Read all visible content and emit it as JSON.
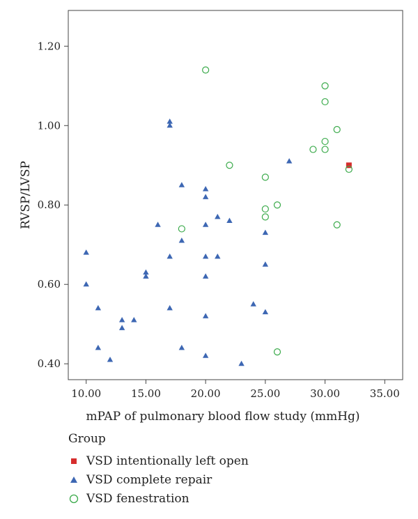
{
  "chart_data": {
    "type": "scatter",
    "xlabel": "mPAP of pulmonary blood flow study (mmHg)",
    "ylabel": "RVSP/LVSP",
    "xlim": [
      8.5,
      36.5
    ],
    "ylim": [
      0.36,
      1.29
    ],
    "xticks": [
      "10.00",
      "15.00",
      "20.00",
      "25.00",
      "30.00",
      "35.00"
    ],
    "yticks": [
      "0.40",
      "0.60",
      "0.80",
      "1.00",
      "1.20"
    ],
    "legend_title": "Group",
    "legend_placement": "bottom",
    "grid": false,
    "series": [
      {
        "name": "VSD intentionally left open",
        "marker": "square",
        "color": "#d62d2d",
        "points": [
          [
            32,
            0.9
          ]
        ]
      },
      {
        "name": "VSD complete repair",
        "marker": "triangle",
        "color": "#3d67b3",
        "points": [
          [
            10,
            0.68
          ],
          [
            10,
            0.6
          ],
          [
            11,
            0.54
          ],
          [
            11,
            0.44
          ],
          [
            12,
            0.41
          ],
          [
            13,
            0.51
          ],
          [
            13,
            0.49
          ],
          [
            14,
            0.51
          ],
          [
            15,
            0.63
          ],
          [
            15,
            0.62
          ],
          [
            16,
            0.75
          ],
          [
            17,
            1.01
          ],
          [
            17,
            1.0
          ],
          [
            17,
            0.67
          ],
          [
            17,
            0.54
          ],
          [
            18,
            0.85
          ],
          [
            18,
            0.71
          ],
          [
            18,
            0.44
          ],
          [
            20,
            0.84
          ],
          [
            20,
            0.82
          ],
          [
            20,
            0.75
          ],
          [
            20,
            0.67
          ],
          [
            20,
            0.62
          ],
          [
            20,
            0.52
          ],
          [
            20,
            0.42
          ],
          [
            21,
            0.77
          ],
          [
            21,
            0.67
          ],
          [
            22,
            0.76
          ],
          [
            23,
            0.4
          ],
          [
            24,
            0.55
          ],
          [
            25,
            0.73
          ],
          [
            25,
            0.65
          ],
          [
            25,
            0.53
          ],
          [
            27,
            0.91
          ]
        ]
      },
      {
        "name": "VSD fenestration",
        "marker": "circle-open",
        "color": "#3aaa4a",
        "points": [
          [
            18,
            0.74
          ],
          [
            20,
            1.14
          ],
          [
            22,
            0.9
          ],
          [
            25,
            0.87
          ],
          [
            25,
            0.79
          ],
          [
            25,
            0.77
          ],
          [
            26,
            0.8
          ],
          [
            26,
            0.43
          ],
          [
            29,
            0.94
          ],
          [
            30,
            1.1
          ],
          [
            30,
            1.06
          ],
          [
            30,
            0.96
          ],
          [
            30,
            0.94
          ],
          [
            31,
            0.99
          ],
          [
            31,
            0.75
          ],
          [
            32,
            0.89
          ]
        ]
      }
    ]
  }
}
